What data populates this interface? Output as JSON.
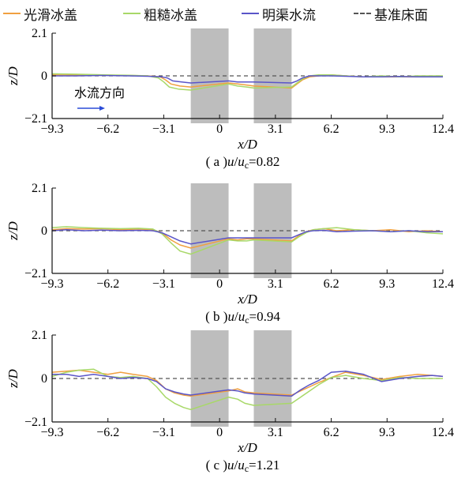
{
  "legend": [
    {
      "label": "光滑冰盖",
      "color": "#f0a040",
      "dashed": false
    },
    {
      "label": "粗糙冰盖",
      "color": "#a8d868",
      "dashed": false
    },
    {
      "label": "明渠水流",
      "color": "#5a55c8",
      "dashed": false
    },
    {
      "label": "基准床面",
      "color": "#555555",
      "dashed": true
    }
  ],
  "flow_direction_label": "水流方向",
  "flow_arrow_color": "#2a4bd7",
  "chart_data": [
    {
      "type": "line",
      "caption": "( a ) u/uc=0.82",
      "caption_parts": {
        "prefix": "( a )",
        "u": "u",
        "uc": "u",
        "sub": "c",
        "value": "=0.82"
      },
      "xlabel": "x/D",
      "ylabel": "z/D",
      "xlim": [
        -9.3,
        12.4
      ],
      "ylim": [
        -2.1,
        2.1
      ],
      "xticks": [
        "−9.3",
        "−6.2",
        "−3.1",
        "0",
        "3.1",
        "6.2",
        "9.3",
        "12.4"
      ],
      "xtick_values": [
        -9.3,
        -6.2,
        -3.1,
        0,
        3.1,
        6.2,
        9.3,
        12.4
      ],
      "yticks": [
        "2.1",
        "0",
        "−2.1"
      ],
      "ytick_values": [
        2.1,
        0,
        -2.1
      ],
      "piers": [
        [
          -1.6,
          0.5
        ],
        [
          1.9,
          4.0
        ]
      ],
      "series": [
        {
          "name": "光滑冰盖",
          "x": [
            -9.3,
            -8.0,
            -6.5,
            -5.0,
            -4.0,
            -3.3,
            -3.0,
            -2.7,
            -2.2,
            -1.6,
            0.5,
            1.0,
            1.5,
            1.9,
            4.0,
            4.3,
            4.6,
            5.0,
            5.5,
            6.2,
            7.0,
            8.0,
            9.0,
            10.0,
            11.0,
            12.4
          ],
          "y": [
            0.05,
            0.03,
            0.04,
            0.02,
            0.0,
            -0.05,
            -0.2,
            -0.4,
            -0.5,
            -0.55,
            -0.35,
            -0.4,
            -0.45,
            -0.5,
            -0.6,
            -0.4,
            -0.2,
            -0.05,
            0.0,
            0.05,
            0.0,
            -0.05,
            -0.05,
            -0.05,
            -0.05,
            -0.05
          ]
        },
        {
          "name": "粗糙冰盖",
          "x": [
            -9.3,
            -8.0,
            -6.5,
            -5.0,
            -4.0,
            -3.4,
            -3.1,
            -2.8,
            -2.3,
            -1.6,
            0.5,
            1.0,
            1.5,
            1.9,
            4.0,
            4.3,
            4.6,
            5.0,
            5.5,
            6.2,
            7.0,
            8.0,
            9.0,
            10.0,
            11.0,
            12.4
          ],
          "y": [
            0.1,
            0.08,
            0.05,
            0.03,
            0.0,
            -0.1,
            -0.3,
            -0.55,
            -0.65,
            -0.7,
            -0.4,
            -0.5,
            -0.55,
            -0.6,
            -0.55,
            -0.35,
            -0.15,
            0.0,
            0.05,
            0.05,
            0.0,
            -0.05,
            0.0,
            -0.05,
            0.0,
            0.0
          ]
        },
        {
          "name": "明渠水流",
          "x": [
            -9.3,
            -8.0,
            -6.5,
            -5.0,
            -4.0,
            -3.2,
            -2.9,
            -2.6,
            -2.1,
            -1.6,
            0.5,
            1.0,
            1.5,
            1.9,
            4.0,
            4.3,
            4.6,
            5.0,
            5.5,
            6.2,
            7.0,
            8.0,
            9.0,
            10.0,
            11.0,
            12.4
          ],
          "y": [
            0.0,
            0.0,
            0.02,
            0.0,
            -0.02,
            -0.05,
            -0.1,
            -0.25,
            -0.3,
            -0.35,
            -0.25,
            -0.3,
            -0.3,
            -0.3,
            -0.35,
            -0.25,
            -0.1,
            0.0,
            0.0,
            0.0,
            -0.02,
            -0.05,
            -0.05,
            -0.03,
            -0.05,
            -0.05
          ]
        }
      ]
    },
    {
      "type": "line",
      "caption": "( b ) u/uc=0.94",
      "caption_parts": {
        "prefix": "( b )",
        "u": "u",
        "uc": "u",
        "sub": "c",
        "value": "=0.94"
      },
      "xlabel": "x/D",
      "ylabel": "z/D",
      "xlim": [
        -9.3,
        12.4
      ],
      "ylim": [
        -2.1,
        2.1
      ],
      "xticks": [
        "−9.3",
        "−6.2",
        "−3.1",
        "0",
        "3.1",
        "6.2",
        "9.3",
        "12.4"
      ],
      "xtick_values": [
        -9.3,
        -6.2,
        -3.1,
        0,
        3.1,
        6.2,
        9.3,
        12.4
      ],
      "yticks": [
        "2.1",
        "0",
        "−2.1"
      ],
      "ytick_values": [
        2.1,
        0,
        -2.1
      ],
      "piers": [
        [
          -1.6,
          0.5
        ],
        [
          1.9,
          4.0
        ]
      ],
      "series": [
        {
          "name": "光滑冰盖",
          "x": [
            -9.3,
            -8.5,
            -7.5,
            -6.5,
            -5.5,
            -4.5,
            -3.7,
            -3.2,
            -2.7,
            -2.2,
            -1.6,
            0.5,
            1.0,
            1.5,
            1.9,
            4.0,
            4.4,
            4.8,
            5.2,
            5.8,
            6.5,
            7.5,
            8.5,
            9.5,
            10.5,
            11.5,
            12.4
          ],
          "y": [
            0.05,
            0.1,
            0.08,
            0.1,
            0.05,
            0.08,
            0.05,
            -0.1,
            -0.45,
            -0.7,
            -0.85,
            -0.4,
            -0.45,
            -0.4,
            -0.4,
            -0.5,
            -0.25,
            -0.05,
            0.05,
            0.1,
            0.0,
            0.05,
            0.0,
            0.05,
            -0.05,
            0.0,
            -0.05
          ]
        },
        {
          "name": "粗糙冰盖",
          "x": [
            -9.3,
            -8.5,
            -7.5,
            -6.5,
            -5.5,
            -4.5,
            -3.7,
            -3.2,
            -2.7,
            -2.2,
            -1.6,
            0.5,
            1.0,
            1.5,
            1.9,
            4.0,
            4.4,
            4.8,
            5.2,
            5.8,
            6.5,
            7.5,
            8.5,
            9.5,
            10.5,
            11.5,
            12.4
          ],
          "y": [
            0.15,
            0.2,
            0.15,
            0.12,
            0.1,
            0.12,
            0.08,
            -0.15,
            -0.6,
            -1.0,
            -1.15,
            -0.45,
            -0.5,
            -0.5,
            -0.45,
            -0.55,
            -0.3,
            -0.1,
            0.05,
            0.1,
            0.15,
            0.05,
            0.0,
            -0.05,
            0.0,
            -0.1,
            -0.15
          ]
        },
        {
          "name": "明渠水流",
          "x": [
            -9.3,
            -8.5,
            -7.5,
            -6.5,
            -5.5,
            -4.5,
            -3.7,
            -3.2,
            -2.7,
            -2.2,
            -1.6,
            0.5,
            1.0,
            1.5,
            1.9,
            4.0,
            4.4,
            4.8,
            5.2,
            5.8,
            6.5,
            7.5,
            8.5,
            9.5,
            10.5,
            11.5,
            12.4
          ],
          "y": [
            0.0,
            0.05,
            0.0,
            0.03,
            0.0,
            0.02,
            0.0,
            -0.1,
            -0.3,
            -0.5,
            -0.65,
            -0.35,
            -0.35,
            -0.35,
            -0.35,
            -0.35,
            -0.2,
            -0.05,
            0.0,
            0.02,
            -0.05,
            -0.02,
            0.0,
            -0.05,
            0.0,
            -0.05,
            -0.05
          ]
        }
      ]
    },
    {
      "type": "line",
      "caption": "( c ) u/uc=1.21",
      "caption_parts": {
        "prefix": "( c )",
        "u": "u",
        "uc": "u",
        "sub": "c",
        "value": "=1.21"
      },
      "xlabel": "x/D",
      "ylabel": "z/D",
      "xlim": [
        -9.3,
        12.4
      ],
      "ylim": [
        -2.1,
        2.1
      ],
      "xticks": [
        "−9.3",
        "−6.2",
        "−3.1",
        "0",
        "3.1",
        "6.2",
        "9.3",
        "12.4"
      ],
      "xtick_values": [
        -9.3,
        -6.2,
        -3.1,
        0,
        3.1,
        6.2,
        9.3,
        12.4
      ],
      "yticks": [
        "2.1",
        "0",
        "−2.1"
      ],
      "ytick_values": [
        2.1,
        0,
        -2.1
      ],
      "piers": [
        [
          -1.6,
          0.5
        ],
        [
          1.9,
          4.0
        ]
      ],
      "series": [
        {
          "name": "光滑冰盖",
          "x": [
            -9.3,
            -8.5,
            -7.8,
            -7.0,
            -6.2,
            -5.5,
            -4.8,
            -4.0,
            -3.5,
            -3.0,
            -2.5,
            -2.0,
            -1.6,
            0.5,
            1.0,
            1.4,
            1.9,
            4.0,
            4.5,
            5.0,
            5.5,
            6.2,
            7.0,
            8.0,
            9.0,
            10.0,
            11.0,
            11.8,
            12.4
          ],
          "y": [
            0.3,
            0.35,
            0.4,
            0.3,
            0.2,
            0.3,
            0.2,
            0.1,
            -0.1,
            -0.5,
            -0.7,
            -0.8,
            -0.85,
            -0.6,
            -0.5,
            -0.65,
            -0.7,
            -0.8,
            -0.6,
            -0.4,
            -0.2,
            0.05,
            0.3,
            0.15,
            -0.05,
            0.1,
            0.2,
            0.15,
            0.1
          ]
        },
        {
          "name": "粗糙冰盖",
          "x": [
            -9.3,
            -8.5,
            -7.8,
            -7.0,
            -6.2,
            -5.5,
            -4.8,
            -4.0,
            -3.5,
            -3.0,
            -2.5,
            -2.0,
            -1.6,
            0.5,
            1.0,
            1.4,
            1.9,
            4.0,
            4.5,
            5.0,
            5.5,
            6.2,
            7.0,
            8.0,
            9.0,
            10.0,
            11.0,
            11.8,
            12.4
          ],
          "y": [
            0.1,
            0.3,
            0.4,
            0.45,
            0.1,
            0.05,
            0.1,
            0.0,
            -0.4,
            -0.9,
            -1.2,
            -1.4,
            -1.5,
            -0.9,
            -1.0,
            -1.2,
            -1.3,
            -1.2,
            -0.9,
            -0.6,
            -0.3,
            0.05,
            0.15,
            0.0,
            -0.1,
            0.05,
            0.0,
            0.0,
            0.0
          ]
        },
        {
          "name": "明渠水流",
          "x": [
            -9.3,
            -8.5,
            -7.8,
            -7.0,
            -6.2,
            -5.5,
            -4.8,
            -4.0,
            -3.5,
            -3.0,
            -2.5,
            -2.0,
            -1.6,
            0.5,
            1.0,
            1.4,
            1.9,
            4.0,
            4.5,
            5.0,
            5.5,
            6.2,
            7.0,
            8.0,
            9.0,
            10.0,
            11.0,
            11.8,
            12.4
          ],
          "y": [
            0.2,
            0.2,
            0.1,
            0.2,
            0.1,
            0.0,
            0.05,
            0.0,
            -0.15,
            -0.5,
            -0.65,
            -0.75,
            -0.8,
            -0.55,
            -0.6,
            -0.7,
            -0.75,
            -0.85,
            -0.55,
            -0.3,
            -0.1,
            0.3,
            0.35,
            0.2,
            -0.15,
            0.0,
            0.1,
            0.15,
            0.1
          ]
        }
      ]
    }
  ]
}
